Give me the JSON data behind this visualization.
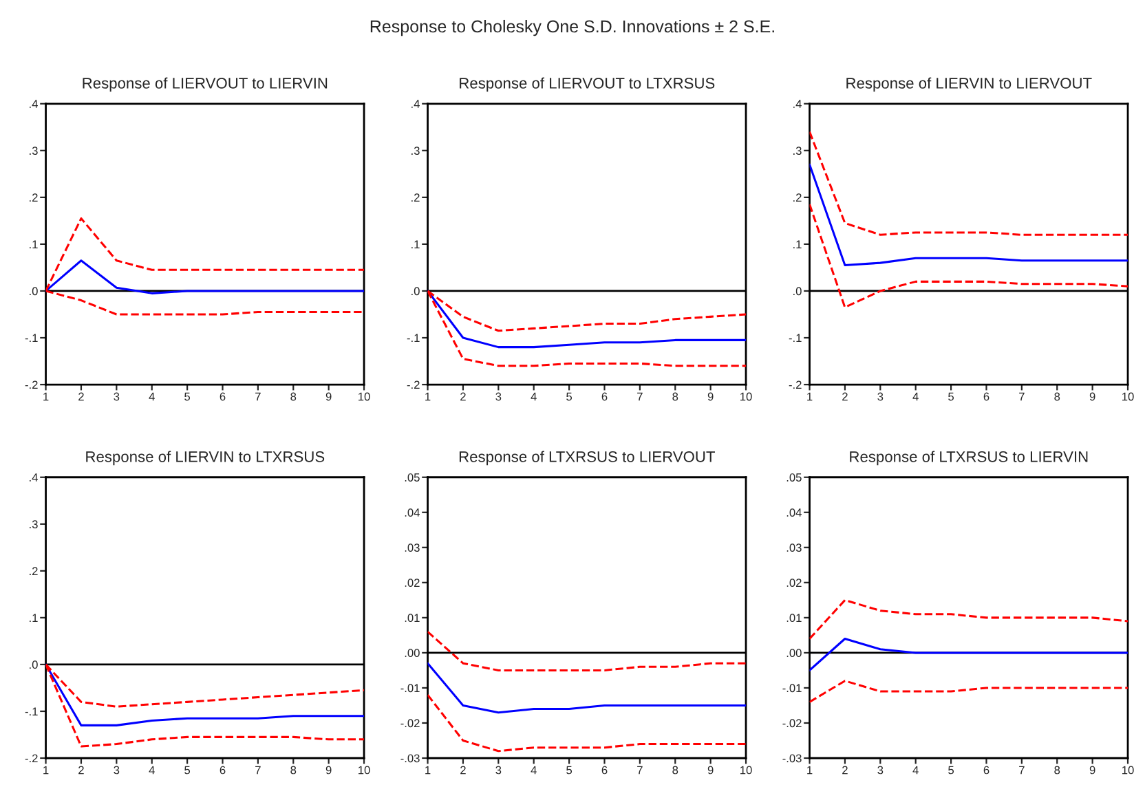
{
  "chart_data": [
    {
      "type": "line",
      "title": "Response of LIERVOUT to LIERVIN",
      "annotations": [
        "Response to Cholesky One S.D. Innovations ± 2 S.E."
      ],
      "x": [
        1,
        2,
        3,
        4,
        5,
        6,
        7,
        8,
        9,
        10
      ],
      "xlim": [
        1,
        10
      ],
      "xticks": [
        1,
        2,
        3,
        4,
        5,
        6,
        7,
        8,
        9,
        10
      ],
      "ylim": [
        -0.2,
        0.4
      ],
      "yticks": [
        {
          "value": -0.2,
          "label": "-.2"
        },
        {
          "value": -0.1,
          "label": "-.1"
        },
        {
          "value": 0.0,
          "label": ".0"
        },
        {
          "value": 0.1,
          "label": ".1"
        },
        {
          "value": 0.2,
          "label": ".2"
        },
        {
          "value": 0.3,
          "label": ".3"
        },
        {
          "value": 0.4,
          "label": ".4"
        }
      ],
      "ref_lines": [
        {
          "axis": "y",
          "value": 0,
          "color": "#000000"
        }
      ],
      "grid": false,
      "legend": false,
      "series": [
        {
          "color": "#0000ff",
          "line_style": "solid",
          "values": [
            0,
            0.065,
            0.007,
            -0.005,
            0,
            0,
            0,
            0,
            0,
            0
          ]
        },
        {
          "color": "#ff0000",
          "line_style": "dashed",
          "values": [
            0,
            0.155,
            0.065,
            0.045,
            0.045,
            0.045,
            0.045,
            0.045,
            0.045,
            0.045
          ]
        },
        {
          "color": "#ff0000",
          "line_style": "dashed",
          "values": [
            0,
            -0.02,
            -0.05,
            -0.05,
            -0.05,
            -0.05,
            -0.045,
            -0.045,
            -0.045,
            -0.045
          ]
        }
      ]
    },
    {
      "type": "line",
      "title": "Response of LIERVOUT to LTXRSUS",
      "x": [
        1,
        2,
        3,
        4,
        5,
        6,
        7,
        8,
        9,
        10
      ],
      "xlim": [
        1,
        10
      ],
      "xticks": [
        1,
        2,
        3,
        4,
        5,
        6,
        7,
        8,
        9,
        10
      ],
      "ylim": [
        -0.2,
        0.4
      ],
      "yticks": [
        {
          "value": -0.2,
          "label": "-.2"
        },
        {
          "value": -0.1,
          "label": "-.1"
        },
        {
          "value": 0.0,
          "label": ".0"
        },
        {
          "value": 0.1,
          "label": ".1"
        },
        {
          "value": 0.2,
          "label": ".2"
        },
        {
          "value": 0.3,
          "label": ".3"
        },
        {
          "value": 0.4,
          "label": ".4"
        }
      ],
      "ref_lines": [
        {
          "axis": "y",
          "value": 0,
          "color": "#000000"
        }
      ],
      "grid": false,
      "legend": false,
      "series": [
        {
          "color": "#0000ff",
          "line_style": "solid",
          "values": [
            0,
            -0.1,
            -0.12,
            -0.12,
            -0.115,
            -0.11,
            -0.11,
            -0.105,
            -0.105,
            -0.105
          ]
        },
        {
          "color": "#ff0000",
          "line_style": "dashed",
          "values": [
            0,
            -0.055,
            -0.085,
            -0.08,
            -0.075,
            -0.07,
            -0.07,
            -0.06,
            -0.055,
            -0.05
          ]
        },
        {
          "color": "#ff0000",
          "line_style": "dashed",
          "values": [
            0,
            -0.145,
            -0.16,
            -0.16,
            -0.155,
            -0.155,
            -0.155,
            -0.16,
            -0.16,
            -0.16
          ]
        }
      ]
    },
    {
      "type": "line",
      "title": "Response of LIERVIN to LIERVOUT",
      "x": [
        1,
        2,
        3,
        4,
        5,
        6,
        7,
        8,
        9,
        10
      ],
      "xlim": [
        1,
        10
      ],
      "xticks": [
        1,
        2,
        3,
        4,
        5,
        6,
        7,
        8,
        9,
        10
      ],
      "ylim": [
        -0.2,
        0.4
      ],
      "yticks": [
        {
          "value": -0.2,
          "label": "-.2"
        },
        {
          "value": -0.1,
          "label": "-.1"
        },
        {
          "value": 0.0,
          "label": ".0"
        },
        {
          "value": 0.1,
          "label": ".1"
        },
        {
          "value": 0.2,
          "label": ".2"
        },
        {
          "value": 0.3,
          "label": ".3"
        },
        {
          "value": 0.4,
          "label": ".4"
        }
      ],
      "ref_lines": [
        {
          "axis": "y",
          "value": 0,
          "color": "#000000"
        }
      ],
      "grid": false,
      "legend": false,
      "series": [
        {
          "color": "#0000ff",
          "line_style": "solid",
          "values": [
            0.27,
            0.055,
            0.06,
            0.07,
            0.07,
            0.07,
            0.065,
            0.065,
            0.065,
            0.065
          ]
        },
        {
          "color": "#ff0000",
          "line_style": "dashed",
          "values": [
            0.34,
            0.145,
            0.12,
            0.125,
            0.125,
            0.125,
            0.12,
            0.12,
            0.12,
            0.12
          ]
        },
        {
          "color": "#ff0000",
          "line_style": "dashed",
          "values": [
            0.185,
            -0.035,
            0.0,
            0.02,
            0.02,
            0.02,
            0.015,
            0.015,
            0.015,
            0.01
          ]
        }
      ]
    },
    {
      "type": "line",
      "title": "Response of LIERVIN to LTXRSUS",
      "x": [
        1,
        2,
        3,
        4,
        5,
        6,
        7,
        8,
        9,
        10
      ],
      "xlim": [
        1,
        10
      ],
      "xticks": [
        1,
        2,
        3,
        4,
        5,
        6,
        7,
        8,
        9,
        10
      ],
      "ylim": [
        -0.2,
        0.4
      ],
      "yticks": [
        {
          "value": -0.2,
          "label": "-.2"
        },
        {
          "value": -0.1,
          "label": "-.1"
        },
        {
          "value": 0.0,
          "label": ".0"
        },
        {
          "value": 0.1,
          "label": ".1"
        },
        {
          "value": 0.2,
          "label": ".2"
        },
        {
          "value": 0.3,
          "label": ".3"
        },
        {
          "value": 0.4,
          "label": ".4"
        }
      ],
      "ref_lines": [
        {
          "axis": "y",
          "value": 0,
          "color": "#000000"
        }
      ],
      "grid": false,
      "legend": false,
      "series": [
        {
          "color": "#0000ff",
          "line_style": "solid",
          "values": [
            0,
            -0.13,
            -0.13,
            -0.12,
            -0.115,
            -0.115,
            -0.115,
            -0.11,
            -0.11,
            -0.11
          ]
        },
        {
          "color": "#ff0000",
          "line_style": "dashed",
          "values": [
            0,
            -0.08,
            -0.09,
            -0.085,
            -0.08,
            -0.075,
            -0.07,
            -0.065,
            -0.06,
            -0.055
          ]
        },
        {
          "color": "#ff0000",
          "line_style": "dashed",
          "values": [
            0,
            -0.175,
            -0.17,
            -0.16,
            -0.155,
            -0.155,
            -0.155,
            -0.155,
            -0.16,
            -0.16
          ]
        }
      ]
    },
    {
      "type": "line",
      "title": "Response of LTXRSUS to LIERVOUT",
      "x": [
        1,
        2,
        3,
        4,
        5,
        6,
        7,
        8,
        9,
        10
      ],
      "xlim": [
        1,
        10
      ],
      "xticks": [
        1,
        2,
        3,
        4,
        5,
        6,
        7,
        8,
        9,
        10
      ],
      "ylim": [
        -0.03,
        0.05
      ],
      "yticks": [
        {
          "value": -0.03,
          "label": "-.03"
        },
        {
          "value": -0.02,
          "label": "-.02"
        },
        {
          "value": -0.01,
          "label": "-.01"
        },
        {
          "value": 0.0,
          "label": ".00"
        },
        {
          "value": 0.01,
          "label": ".01"
        },
        {
          "value": 0.02,
          "label": ".02"
        },
        {
          "value": 0.03,
          "label": ".03"
        },
        {
          "value": 0.04,
          "label": ".04"
        },
        {
          "value": 0.05,
          "label": ".05"
        }
      ],
      "ref_lines": [
        {
          "axis": "y",
          "value": 0,
          "color": "#000000"
        }
      ],
      "grid": false,
      "legend": false,
      "series": [
        {
          "color": "#0000ff",
          "line_style": "solid",
          "values": [
            -0.003,
            -0.015,
            -0.017,
            -0.016,
            -0.016,
            -0.015,
            -0.015,
            -0.015,
            -0.015,
            -0.015
          ]
        },
        {
          "color": "#ff0000",
          "line_style": "dashed",
          "values": [
            0.006,
            -0.003,
            -0.005,
            -0.005,
            -0.005,
            -0.005,
            -0.004,
            -0.004,
            -0.003,
            -0.003
          ]
        },
        {
          "color": "#ff0000",
          "line_style": "dashed",
          "values": [
            -0.012,
            -0.025,
            -0.028,
            -0.027,
            -0.027,
            -0.027,
            -0.026,
            -0.026,
            -0.026,
            -0.026
          ]
        }
      ]
    },
    {
      "type": "line",
      "title": "Response of LTXRSUS to LIERVIN",
      "x": [
        1,
        2,
        3,
        4,
        5,
        6,
        7,
        8,
        9,
        10
      ],
      "xlim": [
        1,
        10
      ],
      "xticks": [
        1,
        2,
        3,
        4,
        5,
        6,
        7,
        8,
        9,
        10
      ],
      "ylim": [
        -0.03,
        0.05
      ],
      "yticks": [
        {
          "value": -0.03,
          "label": "-.03"
        },
        {
          "value": -0.02,
          "label": "-.02"
        },
        {
          "value": -0.01,
          "label": "-.01"
        },
        {
          "value": 0.0,
          "label": ".00"
        },
        {
          "value": 0.01,
          "label": ".01"
        },
        {
          "value": 0.02,
          "label": ".02"
        },
        {
          "value": 0.03,
          "label": ".03"
        },
        {
          "value": 0.04,
          "label": ".04"
        },
        {
          "value": 0.05,
          "label": ".05"
        }
      ],
      "ref_lines": [
        {
          "axis": "y",
          "value": 0,
          "color": "#000000"
        }
      ],
      "grid": false,
      "legend": false,
      "series": [
        {
          "color": "#0000ff",
          "line_style": "solid",
          "values": [
            -0.005,
            0.004,
            0.001,
            0,
            0,
            0,
            0,
            0,
            0,
            0
          ]
        },
        {
          "color": "#ff0000",
          "line_style": "dashed",
          "values": [
            0.004,
            0.015,
            0.012,
            0.011,
            0.011,
            0.01,
            0.01,
            0.01,
            0.01,
            0.009
          ]
        },
        {
          "color": "#ff0000",
          "line_style": "dashed",
          "values": [
            -0.014,
            -0.008,
            -0.011,
            -0.011,
            -0.011,
            -0.01,
            -0.01,
            -0.01,
            -0.01,
            -0.01
          ]
        }
      ]
    }
  ]
}
